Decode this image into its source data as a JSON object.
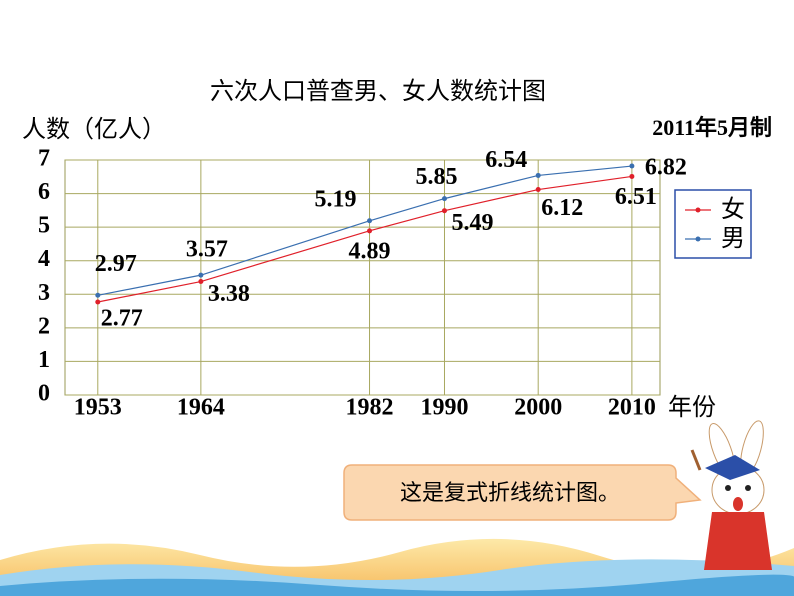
{
  "chart_data": {
    "type": "line",
    "title": "六次人口普查男、女人数统计图",
    "y_label": "人数（亿人）",
    "x_label": "年份",
    "note": "2011年5月制",
    "x": [
      1953,
      1964,
      1982,
      1990,
      2000,
      2010
    ],
    "xlim": [
      1949.5,
      2013
    ],
    "xticks": [
      1953,
      1964,
      1982,
      1990,
      2000,
      2010
    ],
    "ylim": [
      0,
      7
    ],
    "yticks": [
      0,
      1,
      2,
      3,
      4,
      5,
      6,
      7
    ],
    "grid": true,
    "legend": "right",
    "series": [
      {
        "name": "女",
        "color": "#e0202a",
        "values": [
          2.77,
          3.38,
          4.89,
          5.49,
          6.12,
          6.51
        ]
      },
      {
        "name": "男",
        "color": "#3a6fb0",
        "values": [
          2.97,
          3.57,
          5.19,
          5.85,
          6.54,
          6.82
        ]
      }
    ]
  },
  "bubble": {
    "text": "这是复式折线统计图。"
  }
}
